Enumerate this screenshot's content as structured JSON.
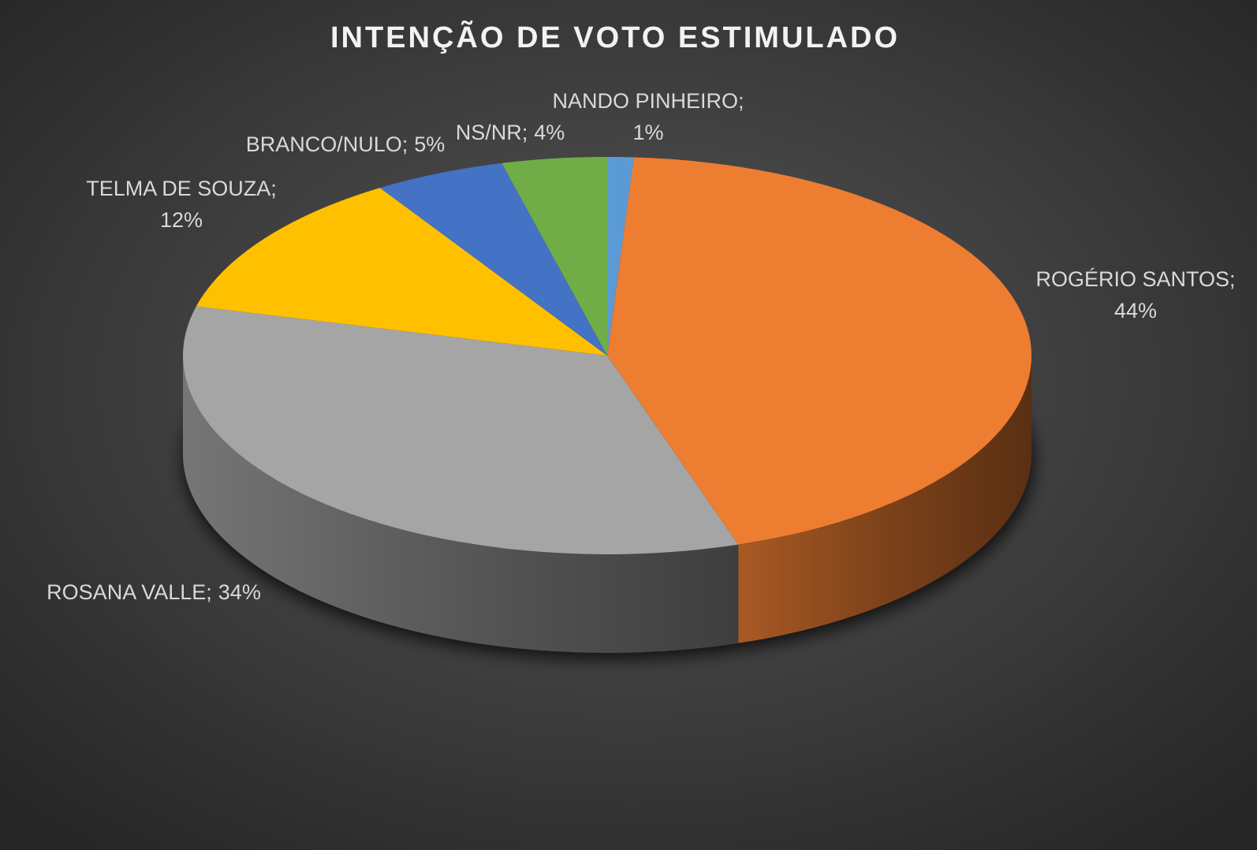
{
  "chart_data": {
    "type": "pie",
    "title": "INTENÇÃO DE VOTO ESTIMULADO",
    "categories": [
      "NANDO PINHEIRO",
      "ROGÉRIO SANTOS",
      "ROSANA VALLE",
      "TELMA DE SOUZA",
      "BRANCO/NULO",
      "NS/NR"
    ],
    "values": [
      1,
      44,
      34,
      12,
      5,
      4
    ],
    "value_labels": [
      "1%",
      "44%",
      "34%",
      "12%",
      "5%",
      "4%"
    ],
    "label_separator": ";",
    "colors": [
      "#5b9bd5",
      "#ed7d31",
      "#a5a5a5",
      "#ffc000",
      "#4472c4",
      "#70ad47"
    ]
  }
}
